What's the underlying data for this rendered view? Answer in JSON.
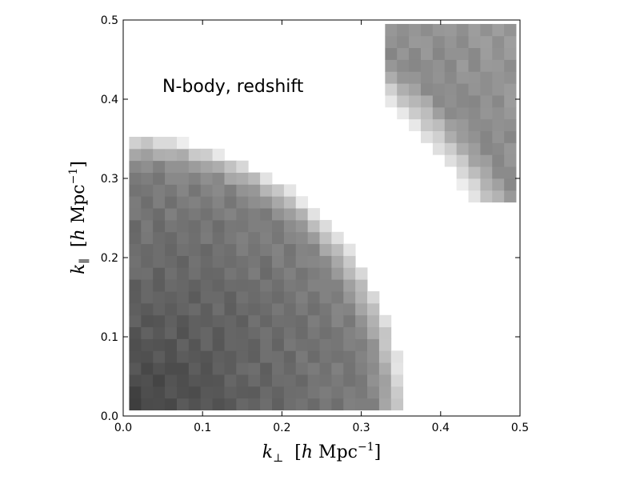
{
  "chart_data": {
    "type": "heatmap",
    "title": "",
    "annotation": "N-body, redshift",
    "xlabel": "k⊥ [h Mpc⁻¹]",
    "ylabel": "k∥ [h Mpc⁻¹]",
    "xlim": [
      0.0,
      0.5
    ],
    "ylim": [
      0.0,
      0.5
    ],
    "xticks": [
      "0.0",
      "0.1",
      "0.2",
      "0.3",
      "0.4",
      "0.5"
    ],
    "yticks": [
      "0.0",
      "0.1",
      "0.2",
      "0.3",
      "0.4",
      "0.5"
    ],
    "grid": false,
    "colormap": "gray",
    "bin_width": 0.015,
    "regions": [
      {
        "name": "low-k",
        "k_min": 0.0,
        "k_max": 0.355,
        "k_fade_start": 0.3,
        "x_from": 0.0075,
        "y_from": 0.0075,
        "gray_center": 0.28,
        "gray_edge": 0.55
      },
      {
        "name": "high-k",
        "k_min": 0.515,
        "k_max": 0.7,
        "k_fade_start": 0.57,
        "x_from": 0.33,
        "y_from": 0.27,
        "gray_center": 0.55,
        "gray_edge": 0.62
      }
    ]
  }
}
